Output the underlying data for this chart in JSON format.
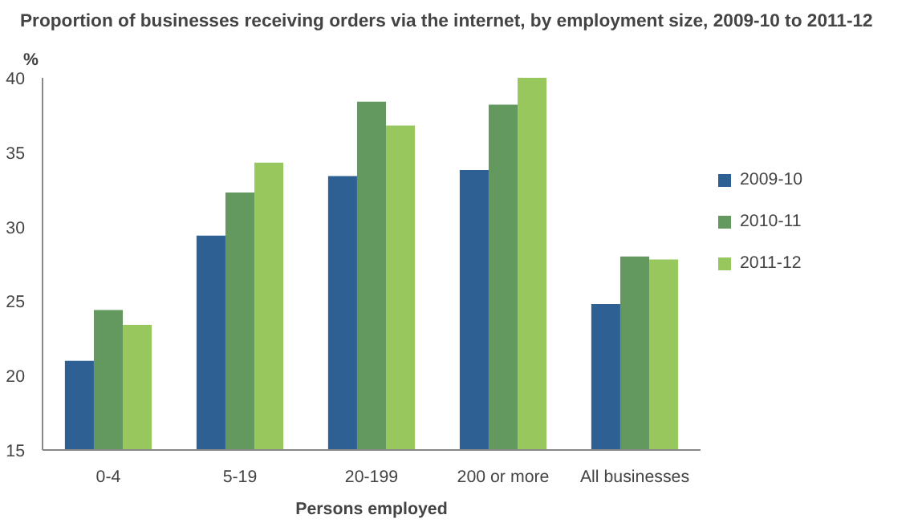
{
  "chart_data": {
    "type": "bar",
    "title": "Proportion of businesses receiving orders via the internet, by employment size, 2009-10 to 2011-12",
    "xlabel": "Persons employed",
    "ylabel": "%",
    "categories": [
      "0-4",
      "5-19",
      "20-199",
      "200 or more",
      "All businesses"
    ],
    "series": [
      {
        "name": "2009-10",
        "color": "#2e6094",
        "values": [
          21.0,
          29.4,
          33.4,
          33.8,
          24.8
        ]
      },
      {
        "name": "2010-11",
        "color": "#63995f",
        "values": [
          24.4,
          32.3,
          38.4,
          38.2,
          28.0
        ]
      },
      {
        "name": "2011-12",
        "color": "#98c75e",
        "values": [
          23.4,
          34.3,
          36.8,
          40.0,
          27.8
        ]
      }
    ],
    "ylim": [
      15,
      40
    ],
    "yticks": [
      15,
      20,
      25,
      30,
      35,
      40
    ],
    "grid": false,
    "legend": "right"
  }
}
